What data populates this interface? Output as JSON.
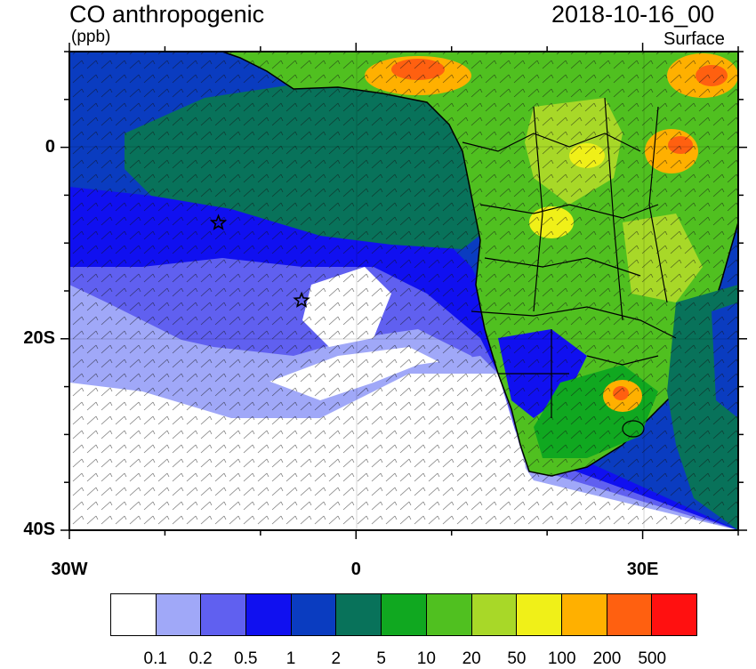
{
  "header": {
    "title": "CO anthropogenic",
    "units": "(ppb)",
    "datetime": "2018-10-16_00",
    "level": "Surface"
  },
  "map": {
    "lon_range": [
      -30,
      40
    ],
    "lat_range": [
      -40,
      10
    ],
    "lat_labels": [
      {
        "lat": 0,
        "label": "0"
      },
      {
        "lat": -20,
        "label": "20S"
      },
      {
        "lat": -40,
        "label": "40S"
      }
    ],
    "lon_labels": [
      {
        "lon": -30,
        "label": "30W"
      },
      {
        "lon": 0,
        "label": "0"
      },
      {
        "lon": 30,
        "label": "30E"
      }
    ],
    "markers": [
      {
        "name": "star-marker",
        "lon": -14.4,
        "lat": -7.9
      },
      {
        "name": "star-marker",
        "lon": -5.7,
        "lat": -16.0
      }
    ]
  },
  "colorbar": {
    "colors": [
      "#ffffff",
      "#a0a8f8",
      "#6060f0",
      "#1010f0",
      "#0a3cc0",
      "#08725a",
      "#10a820",
      "#50c020",
      "#a8d828",
      "#f0f018",
      "#ffb000",
      "#ff6010",
      "#ff1010"
    ],
    "labels": [
      "0.1",
      "0.2",
      "0.5",
      "1",
      "2",
      "5",
      "10",
      "20",
      "50",
      "100",
      "200",
      "500"
    ]
  }
}
